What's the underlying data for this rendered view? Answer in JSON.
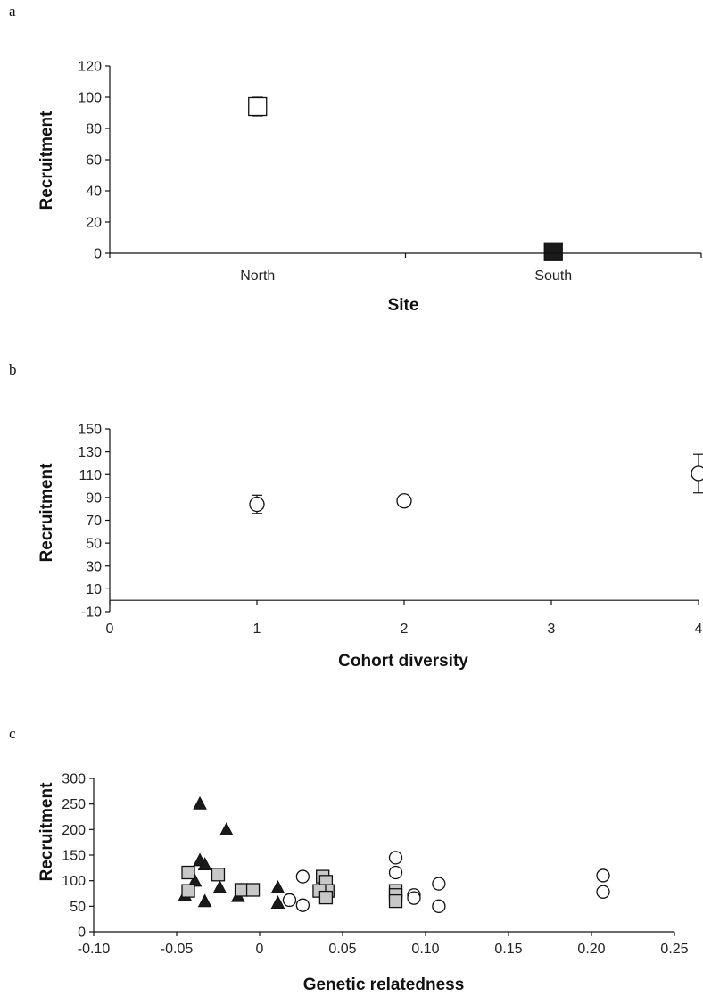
{
  "chart_data": [
    {
      "panel_label": "a",
      "type": "scatter",
      "xlabel": "Site",
      "ylabel": "Recruitment",
      "ylim": [
        0,
        120
      ],
      "yticks": [
        "0",
        "20",
        "40",
        "60",
        "80",
        "100",
        "120"
      ],
      "categories": [
        "North",
        "South"
      ],
      "points": [
        {
          "category": "North",
          "y": 94,
          "err_low": 88,
          "err_high": 100,
          "marker": "square",
          "fill": "#ffffff"
        },
        {
          "category": "South",
          "y": 1,
          "err_low": 1,
          "err_high": 1,
          "marker": "square",
          "fill": "#1a1a1a"
        }
      ]
    },
    {
      "panel_label": "b",
      "type": "scatter",
      "xlabel": "Cohort diversity",
      "ylabel": "Recruitment",
      "xlim": [
        0,
        4
      ],
      "ylim": [
        -10,
        150
      ],
      "xticks": [
        "0",
        "1",
        "2",
        "3",
        "4"
      ],
      "yticks": [
        "-10",
        "10",
        "30",
        "50",
        "70",
        "90",
        "110",
        "130",
        "150"
      ],
      "points": [
        {
          "x": 1,
          "y": 84,
          "err_low": 76,
          "err_high": 92
        },
        {
          "x": 2,
          "y": 87,
          "err_low": 87,
          "err_high": 87
        },
        {
          "x": 4,
          "y": 111,
          "err_low": 94,
          "err_high": 128
        }
      ]
    },
    {
      "panel_label": "c",
      "type": "scatter",
      "xlabel": "Genetic relatedness",
      "ylabel": "Recruitment",
      "xlim": [
        -0.1,
        0.25
      ],
      "ylim": [
        0,
        300
      ],
      "xticks": [
        "-0.10",
        "-0.05",
        "0",
        "0.05",
        "0.10",
        "0.15",
        "0.20",
        "0.25"
      ],
      "yticks": [
        "0",
        "50",
        "100",
        "150",
        "200",
        "250",
        "300"
      ],
      "series": [
        {
          "marker": "triangle",
          "fill": "#1a1a1a",
          "x": [
            -0.036,
            -0.02,
            -0.036,
            -0.033,
            -0.039,
            -0.045,
            -0.024,
            -0.013,
            -0.011,
            -0.033,
            0.011,
            0.011
          ],
          "y": [
            249,
            198,
            138,
            130,
            98,
            70,
            85,
            68,
            80,
            58,
            85,
            55
          ]
        },
        {
          "marker": "square",
          "fill": "#c8c8c8",
          "x": [
            -0.043,
            -0.043,
            -0.025,
            -0.011,
            -0.004,
            0.038,
            0.04,
            0.041,
            0.036,
            0.04,
            0.082,
            0.082,
            0.082
          ],
          "y": [
            116,
            80,
            112,
            82,
            82,
            108,
            98,
            80,
            80,
            67,
            80,
            72,
            60
          ]
        },
        {
          "marker": "circle",
          "fill": "#ffffff",
          "x": [
            0.026,
            0.018,
            0.026,
            0.082,
            0.082,
            0.093,
            0.093,
            0.108,
            0.108,
            0.207,
            0.207
          ],
          "y": [
            108,
            62,
            52,
            145,
            116,
            72,
            66,
            94,
            50,
            110,
            78
          ]
        }
      ]
    }
  ]
}
